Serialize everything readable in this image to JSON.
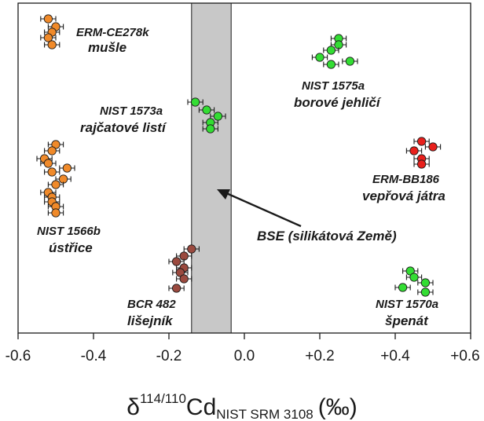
{
  "chart_data": {
    "type": "scatter",
    "xlim": [
      -0.6,
      0.6
    ],
    "x_ticks": [
      {
        "value": -0.6,
        "label": "-0.6"
      },
      {
        "value": -0.4,
        "label": "-0.4"
      },
      {
        "value": -0.2,
        "label": "-0.2"
      },
      {
        "value": 0.0,
        "label": "0.0"
      },
      {
        "value": 0.2,
        "label": "+0.2"
      },
      {
        "value": 0.4,
        "label": "+0.4"
      },
      {
        "value": 0.6,
        "label": "+0.6"
      }
    ],
    "xlabel": {
      "delta": "δ",
      "sup": "114/110",
      "main": "Cd",
      "sub": "NIST SRM 3108",
      "unit": "(‰)"
    },
    "grid": false,
    "bse_band": {
      "x_min": -0.14,
      "x_max": -0.035,
      "label": "BSE (silikátová Země)",
      "color": "#c8c8c8"
    },
    "colors": {
      "orange": "#f08a2a",
      "green": "#33dd33",
      "red": "#e8201c",
      "brown": "#9b4a3f"
    },
    "groups": [
      {
        "name": "ERM-CE278k",
        "subtitle": "mušle",
        "color": "#f08a2a",
        "points": [
          {
            "x": -0.52,
            "err": 0.02
          },
          {
            "x": -0.5,
            "err": 0.02
          },
          {
            "x": -0.51,
            "err": 0.02
          },
          {
            "x": -0.52,
            "err": 0.02
          },
          {
            "x": -0.51,
            "err": 0.02
          }
        ]
      },
      {
        "name": "NIST 1575a",
        "subtitle": "borové jehličí",
        "color": "#33dd33",
        "points": [
          {
            "x": 0.25,
            "err": 0.02
          },
          {
            "x": 0.25,
            "err": 0.02
          },
          {
            "x": 0.23,
            "err": 0.02
          },
          {
            "x": 0.2,
            "err": 0.02
          },
          {
            "x": 0.28,
            "err": 0.02
          },
          {
            "x": 0.23,
            "err": 0.02
          }
        ]
      },
      {
        "name": "NIST 1573a",
        "subtitle": "rajčatové listí",
        "color": "#33dd33",
        "points": [
          {
            "x": -0.13,
            "err": 0.02
          },
          {
            "x": -0.1,
            "err": 0.02
          },
          {
            "x": -0.07,
            "err": 0.02
          },
          {
            "x": -0.09,
            "err": 0.02
          },
          {
            "x": -0.09,
            "err": 0.02
          }
        ]
      },
      {
        "name": "ERM-BB186",
        "subtitle": "vepřová játra",
        "color": "#e8201c",
        "points": [
          {
            "x": 0.47,
            "err": 0.02
          },
          {
            "x": 0.5,
            "err": 0.02
          },
          {
            "x": 0.45,
            "err": 0.02
          },
          {
            "x": 0.47,
            "err": 0.02
          },
          {
            "x": 0.47,
            "err": 0.02
          }
        ]
      },
      {
        "name": "NIST 1566b",
        "subtitle": "ústřice",
        "color": "#f08a2a",
        "points": [
          {
            "x": -0.5,
            "err": 0.02
          },
          {
            "x": -0.51,
            "err": 0.02
          },
          {
            "x": -0.53,
            "err": 0.02
          },
          {
            "x": -0.52,
            "err": 0.02
          },
          {
            "x": -0.47,
            "err": 0.02
          },
          {
            "x": -0.51,
            "err": 0.02
          },
          {
            "x": -0.48,
            "err": 0.02
          },
          {
            "x": -0.5,
            "err": 0.02
          },
          {
            "x": -0.52,
            "err": 0.02
          },
          {
            "x": -0.51,
            "err": 0.02
          },
          {
            "x": -0.51,
            "err": 0.02
          },
          {
            "x": -0.5,
            "err": 0.02
          },
          {
            "x": -0.5,
            "err": 0.02
          }
        ]
      },
      {
        "name": "BCR 482",
        "subtitle": "lišejník",
        "color": "#9b4a3f",
        "points": [
          {
            "x": -0.14,
            "err": 0.02
          },
          {
            "x": -0.16,
            "err": 0.02
          },
          {
            "x": -0.18,
            "err": 0.02
          },
          {
            "x": -0.16,
            "err": 0.02
          },
          {
            "x": -0.17,
            "err": 0.02
          },
          {
            "x": -0.16,
            "err": 0.02
          },
          {
            "x": -0.18,
            "err": 0.02
          }
        ]
      },
      {
        "name": "NIST 1570a",
        "subtitle": "špenát",
        "color": "#33dd33",
        "points": [
          {
            "x": 0.44,
            "err": 0.02
          },
          {
            "x": 0.45,
            "err": 0.02
          },
          {
            "x": 0.48,
            "err": 0.02
          },
          {
            "x": 0.42,
            "err": 0.02
          },
          {
            "x": 0.48,
            "err": 0.02
          }
        ]
      }
    ]
  }
}
